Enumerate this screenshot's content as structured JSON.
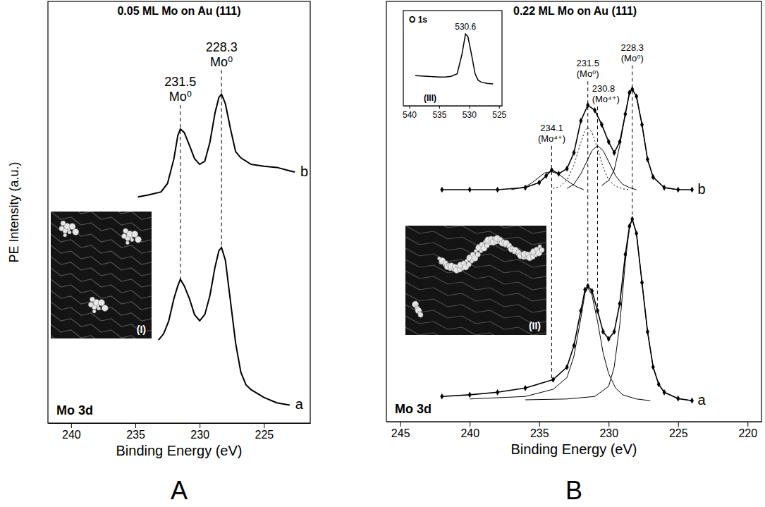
{
  "chart_data": [
    {
      "type": "line",
      "panel": "A",
      "title": "0.05 ML Mo on Au (111)",
      "xlabel": "Binding Energy (eV)",
      "ylabel": "PE Intensity (a.u.)",
      "text": "Mo 3d",
      "image_label": "(I)",
      "xlim": [
        241.8,
        221.4
      ],
      "xticks": [
        240,
        235,
        230,
        225
      ],
      "ylim": [
        0,
        110
      ],
      "tick_labels": "x",
      "grid": false,
      "series": [
        {
          "name": "b",
          "color": "#000000",
          "line_style": "solid",
          "x": [
            234.8,
            234,
            233,
            232.5,
            232,
            231.7,
            231.5,
            231.2,
            230.8,
            230.4,
            230,
            229.6,
            229.2,
            228.8,
            228.5,
            228.3,
            228,
            227.6,
            227.2,
            226.8,
            226,
            225,
            224,
            223,
            222.6
          ],
          "values": [
            59,
            59.5,
            60.3,
            62.5,
            69,
            75,
            76.7,
            75.8,
            72.5,
            69,
            67.5,
            68.3,
            73.3,
            81,
            85,
            85.8,
            83.3,
            76.7,
            70.8,
            69.2,
            67.5,
            67,
            66.7,
            65.8,
            65.5
          ]
        },
        {
          "name": "a",
          "color": "#000000",
          "line_style": "solid",
          "x": [
            233.2,
            232.8,
            232.4,
            232,
            231.7,
            231.5,
            231.2,
            230.8,
            230.4,
            230,
            229.6,
            229.2,
            228.8,
            228.5,
            228.3,
            228,
            227.6,
            227.2,
            226.8,
            226.4,
            226,
            225,
            224,
            223
          ],
          "values": [
            21.7,
            23.3,
            26.7,
            32.5,
            35.8,
            37.5,
            35.8,
            32.5,
            28.3,
            26.7,
            28.3,
            33.3,
            40.8,
            45,
            45.8,
            42.5,
            31.7,
            20.8,
            13.3,
            10,
            8.7,
            6.7,
            5.3,
            4.7
          ]
        }
      ],
      "annotations": [
        {
          "x": 231.5,
          "text": "231.5",
          "label": "Mo⁰"
        },
        {
          "x": 228.3,
          "text": "228.3",
          "label": "Mo⁰"
        }
      ]
    },
    {
      "type": "line",
      "panel": "B",
      "title": "0.22 ML Mo on Au (111)",
      "xlabel": "Binding Energy (eV)",
      "text": "Mo 3d",
      "image_label": "(II)",
      "xlim": [
        246,
        219
      ],
      "xticks": [
        245,
        240,
        235,
        230,
        225,
        220
      ],
      "ylim": [
        0,
        100
      ],
      "tick_labels": "x",
      "grid": false,
      "series": [
        {
          "name": "b",
          "color": "#000000",
          "line_style": "solid",
          "marker": "diamond",
          "x": [
            242,
            240,
            238,
            236,
            235,
            234.5,
            234.1,
            233.6,
            233,
            232.5,
            232,
            231.5,
            231,
            230.5,
            230,
            229.6,
            229.2,
            228.8,
            228.5,
            228.3,
            228,
            227.6,
            227.2,
            226.8,
            226,
            225,
            224
          ],
          "values": [
            55.2,
            55.2,
            55.2,
            55.7,
            56.9,
            58.5,
            59.9,
            59,
            60.2,
            64,
            71.6,
            75.3,
            74.1,
            70.7,
            66.6,
            64,
            66.6,
            73.2,
            78.3,
            79.1,
            77.4,
            70.7,
            62.4,
            58.2,
            55.7,
            55.2,
            55.2
          ]
        },
        {
          "color": "#000000",
          "line_style": "solid",
          "x": [
            230.5,
            230,
            229.6,
            229.2,
            228.8,
            228.5,
            228.3,
            228,
            227.6,
            227.2,
            226.8,
            226,
            225
          ],
          "values": [
            56.2,
            57.4,
            59.9,
            65.7,
            73.2,
            78.3,
            79.1,
            77.4,
            70.7,
            62.4,
            58.2,
            55.7,
            55.2
          ]
        },
        {
          "color": "#000000",
          "line_style": "dotted",
          "x": [
            234,
            233.5,
            233,
            232.5,
            232,
            231.7,
            231.5,
            231.2,
            230.8,
            230.4,
            230,
            229.5,
            229,
            228.5
          ],
          "values": [
            55.5,
            56,
            57.5,
            61,
            66.5,
            69.3,
            70,
            68.8,
            65,
            60.5,
            57.5,
            56,
            55.4,
            55.2
          ]
        },
        {
          "color": "#000000",
          "line_style": "solid",
          "x": [
            233,
            232.5,
            232,
            231.5,
            231.2,
            230.8,
            230.4,
            230,
            229.5,
            229,
            228.5,
            228
          ],
          "values": [
            55.5,
            56.5,
            59,
            62.4,
            64.5,
            65.7,
            64.5,
            61.9,
            58.5,
            56.5,
            55.7,
            55.2
          ]
        },
        {
          "color": "#000000",
          "line_style": "solid",
          "x": [
            237,
            236,
            235.5,
            235,
            234.6,
            234.1,
            233.6,
            233.2,
            232.8,
            232.3,
            231.8
          ],
          "values": [
            55.2,
            55.9,
            56.9,
            58.2,
            59.2,
            59.5,
            58.9,
            57.9,
            56.9,
            55.9,
            55.2
          ]
        },
        {
          "name": "a",
          "color": "#000000",
          "line_style": "solid",
          "marker": "diamond",
          "x": [
            242,
            240,
            238,
            236,
            234,
            233,
            232.5,
            232,
            231.7,
            231.5,
            231.2,
            230.8,
            230.4,
            230,
            229.6,
            229.2,
            228.8,
            228.5,
            228.3,
            228,
            227.6,
            227.2,
            226.8,
            226.4,
            226,
            225,
            224
          ],
          "values": [
            6,
            6.4,
            7,
            8,
            10,
            13,
            18.1,
            26.4,
            31.4,
            32.3,
            31.1,
            26.4,
            21.4,
            19.7,
            21.4,
            28.1,
            39.8,
            46.5,
            48.2,
            44.8,
            33.1,
            21.4,
            13,
            8.9,
            7,
            5.5,
            5
          ]
        },
        {
          "color": "#000000",
          "line_style": "solid",
          "x": [
            240,
            236,
            234,
            233,
            232.5,
            232,
            231.7,
            231.5,
            231.2,
            230.8,
            230.4,
            230,
            229.5,
            229,
            228,
            227
          ],
          "values": [
            5.4,
            6,
            7.7,
            10.5,
            15.6,
            24.7,
            30.6,
            31.8,
            30.1,
            23.9,
            16.4,
            11.4,
            8,
            6.4,
            5.4,
            5
          ]
        },
        {
          "color": "#000000",
          "line_style": "solid",
          "x": [
            236,
            233,
            231,
            230,
            229.6,
            229.2,
            228.8,
            228.5,
            228.3,
            228,
            227.6,
            227.2,
            226.8,
            226.4,
            226,
            225,
            224
          ],
          "values": [
            5.2,
            5.4,
            6,
            8.4,
            13,
            23.1,
            38.1,
            46.2,
            48.2,
            44.8,
            33.1,
            21.4,
            13,
            8.9,
            7,
            5.5,
            5
          ]
        }
      ],
      "annotations": [
        {
          "x": 234.1,
          "text": "234.1",
          "label": "(Mo⁴⁺)"
        },
        {
          "x": 231.5,
          "text": "231.5",
          "label": "(Mo⁰)"
        },
        {
          "x": 230.8,
          "text": "230.8",
          "label": "(Mo⁴⁺)"
        },
        {
          "x": 228.3,
          "text": "228.3",
          "label": "(Mo⁰)"
        }
      ]
    },
    {
      "type": "line",
      "text": "O 1s",
      "label": "(III)",
      "xlim": [
        541,
        524.5
      ],
      "xticks": [
        540,
        535,
        530,
        525
      ],
      "ylim": [
        0,
        110
      ],
      "tick_labels": "x",
      "grid": false,
      "series": [
        {
          "color": "#000000",
          "line_style": "solid",
          "x": [
            539,
            537,
            535,
            534,
            533,
            532,
            531.2,
            530.6,
            530.2,
            529.6,
            529,
            528.5,
            528,
            527,
            526
          ],
          "values": [
            34.8,
            34.1,
            33.3,
            33.3,
            34.1,
            37,
            59.3,
            83,
            80,
            59.3,
            37,
            29.6,
            27.4,
            25.9,
            25.2
          ]
        }
      ],
      "annotations": [
        {
          "x": 530.6,
          "text": "530.6"
        }
      ]
    }
  ]
}
